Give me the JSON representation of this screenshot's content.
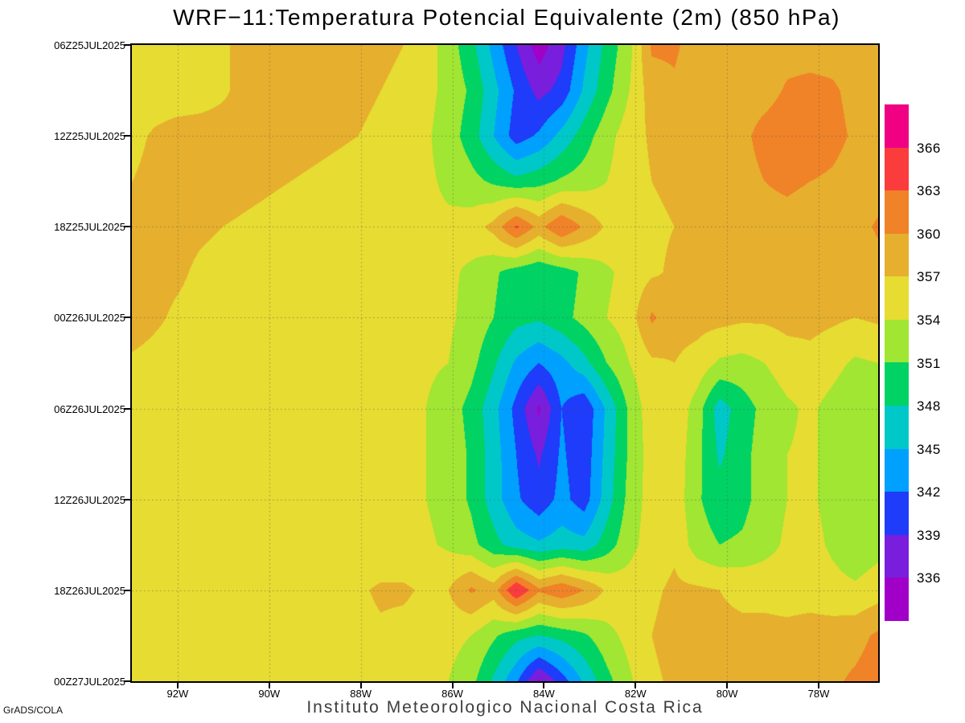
{
  "chart_data": {
    "type": "heatmap",
    "subtype": "filled-contour-hovmoller",
    "title": "WRF−11:Temperatura Potencial Equivalente (2m) (850 hPa)",
    "x_axis": {
      "unit": "longitude (degrees West)",
      "domain_degW": [
        93.0,
        76.7
      ],
      "ticks": [
        {
          "label": "92W",
          "degW": 92
        },
        {
          "label": "90W",
          "degW": 90
        },
        {
          "label": "88W",
          "degW": 88
        },
        {
          "label": "86W",
          "degW": 86
        },
        {
          "label": "84W",
          "degW": 84
        },
        {
          "label": "82W",
          "degW": 82
        },
        {
          "label": "80W",
          "degW": 80
        },
        {
          "label": "78W",
          "degW": 78
        }
      ]
    },
    "y_axis": {
      "unit": "time (UTC), top to bottom",
      "ticks": [
        "06Z25JUL2025",
        "12Z25JUL2025",
        "18Z25JUL2025",
        "00Z26JUL2025",
        "06Z26JUL2025",
        "12Z26JUL2025",
        "18Z26JUL2025",
        "00Z27JUL2025"
      ]
    },
    "legend": {
      "position": "right",
      "levels": [
        336,
        339,
        342,
        345,
        348,
        351,
        354,
        357,
        360,
        363,
        366
      ],
      "colors": [
        "#a000c8",
        "#781edc",
        "#1e3cfa",
        "#00a0ff",
        "#00c8c8",
        "#00d264",
        "#a0e632",
        "#e6dc32",
        "#e6af2d",
        "#f08228",
        "#fa3c3c",
        "#f00082"
      ]
    },
    "grid_info": {
      "description": "Equivalent potential temperature (K); 15 rows = times every 3h from 06Z25JUL2025 to 00Z27JUL2025 (top to bottom); 34 columns uniform across x domain 93.0W to 76.7W (left to right).",
      "rows_time_step_hours": 3
    },
    "grid": [
      [
        355,
        355,
        355,
        355.5,
        356.5,
        358,
        358.5,
        358.5,
        358.5,
        358.5,
        358,
        357.5,
        357,
        355.5,
        352.5,
        349,
        344,
        339,
        334.5,
        338,
        344,
        349,
        353,
        360.5,
        360.5,
        358.5,
        358,
        357.5,
        358,
        358.5,
        358.5,
        358.5,
        358,
        357.5
      ],
      [
        355,
        355,
        355,
        355.5,
        356.5,
        358,
        358.5,
        358.5,
        358.5,
        358,
        357.5,
        357,
        356.5,
        355,
        353,
        350.5,
        346,
        341.5,
        338,
        340,
        345.5,
        350,
        354,
        358.5,
        359.5,
        358.5,
        358,
        358,
        358.5,
        360.5,
        361,
        360.5,
        359,
        358
      ],
      [
        356,
        357.5,
        358.5,
        358.5,
        358.5,
        358.5,
        358.5,
        358.5,
        358,
        357.5,
        357,
        356.5,
        356,
        354.5,
        352.5,
        349.5,
        345,
        340.5,
        342.5,
        346,
        349.5,
        353,
        355.5,
        357.5,
        358,
        358,
        358,
        359,
        361.5,
        362.5,
        362,
        361,
        359.5,
        358
      ],
      [
        357,
        358,
        358.5,
        358.5,
        358.5,
        358,
        357.5,
        357,
        356.5,
        356,
        355.5,
        355.5,
        355,
        354.5,
        353.5,
        352,
        350.5,
        349,
        350,
        351.5,
        352.5,
        354,
        355.5,
        357,
        357.5,
        358,
        358,
        358.5,
        360,
        360.5,
        360,
        359.5,
        358.5,
        358
      ],
      [
        358.5,
        358.5,
        358,
        357.5,
        357,
        356.5,
        356,
        355.5,
        355.5,
        355,
        355,
        355,
        355,
        354.5,
        354.5,
        355.5,
        358,
        363.5,
        359,
        363,
        359.5,
        356.5,
        355.5,
        356.5,
        357,
        357.5,
        358,
        358.5,
        359,
        359,
        358.5,
        358.5,
        358.5,
        360.5
      ],
      [
        358.5,
        358,
        357.5,
        356.5,
        356,
        355.5,
        355,
        355,
        355,
        355,
        355,
        355,
        355,
        355,
        354.5,
        353.5,
        351.5,
        349.5,
        348.5,
        349.5,
        351.5,
        353.5,
        355,
        356.5,
        357.5,
        358,
        358,
        358,
        358.5,
        358.5,
        358,
        358,
        357.5,
        358.5
      ],
      [
        358.5,
        357.5,
        356.5,
        356,
        355.5,
        355,
        355,
        355,
        355,
        355,
        355,
        355,
        355,
        355,
        354.5,
        353,
        351,
        349,
        348.5,
        350,
        352,
        354,
        355.5,
        360.5,
        358,
        358,
        358,
        357.5,
        357.5,
        358,
        358,
        357.5,
        357,
        357.5
      ],
      [
        356.5,
        356,
        355.5,
        355,
        355,
        355,
        355,
        355,
        354.5,
        354.5,
        354.5,
        354.5,
        354.5,
        354.5,
        354,
        352,
        348.5,
        344.5,
        342,
        344,
        347,
        351,
        354,
        356.5,
        357,
        356,
        353.5,
        353,
        354,
        355.5,
        356,
        355,
        353.5,
        354
      ],
      [
        355.5,
        355,
        355,
        355,
        355,
        355,
        355,
        354.5,
        354.5,
        354.5,
        354.5,
        354.5,
        354.5,
        354,
        352.5,
        350,
        346,
        341,
        335.5,
        342,
        339.5,
        345.5,
        351.5,
        356,
        356.5,
        352.5,
        346.5,
        349.5,
        352,
        353.5,
        354.5,
        353,
        351.5,
        352.5
      ],
      [
        355.5,
        355,
        355,
        355,
        355,
        355,
        355,
        354.5,
        354.5,
        354.5,
        354.5,
        354.5,
        354.5,
        354,
        353,
        350.5,
        346.5,
        342,
        338.5,
        342.5,
        340,
        346,
        351.5,
        355.5,
        356,
        352,
        347.5,
        350,
        352.5,
        354,
        354.5,
        353,
        351.5,
        352.5
      ],
      [
        355.5,
        355,
        355,
        355,
        355,
        355,
        355,
        355,
        354.5,
        354.5,
        354.5,
        354.5,
        354.5,
        354,
        353,
        350.5,
        346.5,
        342.5,
        340,
        343,
        340.5,
        346.5,
        352,
        355.5,
        356,
        351.5,
        349,
        350,
        352.5,
        354,
        354.5,
        353,
        351.5,
        352.5
      ],
      [
        355.5,
        355,
        355,
        355,
        355,
        355,
        355,
        355,
        355,
        354.5,
        354.5,
        354.5,
        354.5,
        354.5,
        353.5,
        352,
        349,
        346.5,
        345.5,
        346.5,
        346,
        349.5,
        353,
        355.5,
        356.5,
        352.5,
        351,
        351.5,
        353,
        354.5,
        355,
        353.5,
        352,
        353
      ],
      [
        355.5,
        355,
        355,
        355,
        355,
        355,
        355,
        355,
        355,
        355.5,
        356.5,
        357.5,
        357.5,
        356.5,
        357,
        360.5,
        358.5,
        366.3,
        360.5,
        362.5,
        360,
        356.5,
        355.5,
        356.5,
        357.5,
        357.5,
        357,
        356.5,
        356,
        355.5,
        355.5,
        355,
        354.5,
        355.5
      ],
      [
        355.5,
        355,
        355,
        355,
        355,
        355,
        355,
        355,
        355,
        355.5,
        356,
        356.5,
        356,
        355.5,
        355,
        354,
        351.5,
        349,
        348,
        349,
        350.5,
        353,
        355,
        357,
        358,
        358,
        357.5,
        357.5,
        358,
        358,
        358.5,
        358.5,
        359,
        360.5
      ],
      [
        355.5,
        355,
        355,
        355,
        355,
        355,
        355,
        355,
        355,
        355.5,
        356,
        356.5,
        356,
        355.5,
        354,
        352,
        347.5,
        342.5,
        335.5,
        340.5,
        345.5,
        350,
        353.5,
        356.5,
        357.5,
        358,
        358,
        358,
        358.5,
        358.5,
        359,
        359.5,
        360.5,
        361.5
      ]
    ],
    "grid_style": {
      "gridlines": "dotted",
      "gridline_color": "#555555"
    }
  },
  "footer": {
    "credit": "GrADS/COLA",
    "institute": "Instituto Meteorologico Nacional Costa Rica"
  }
}
